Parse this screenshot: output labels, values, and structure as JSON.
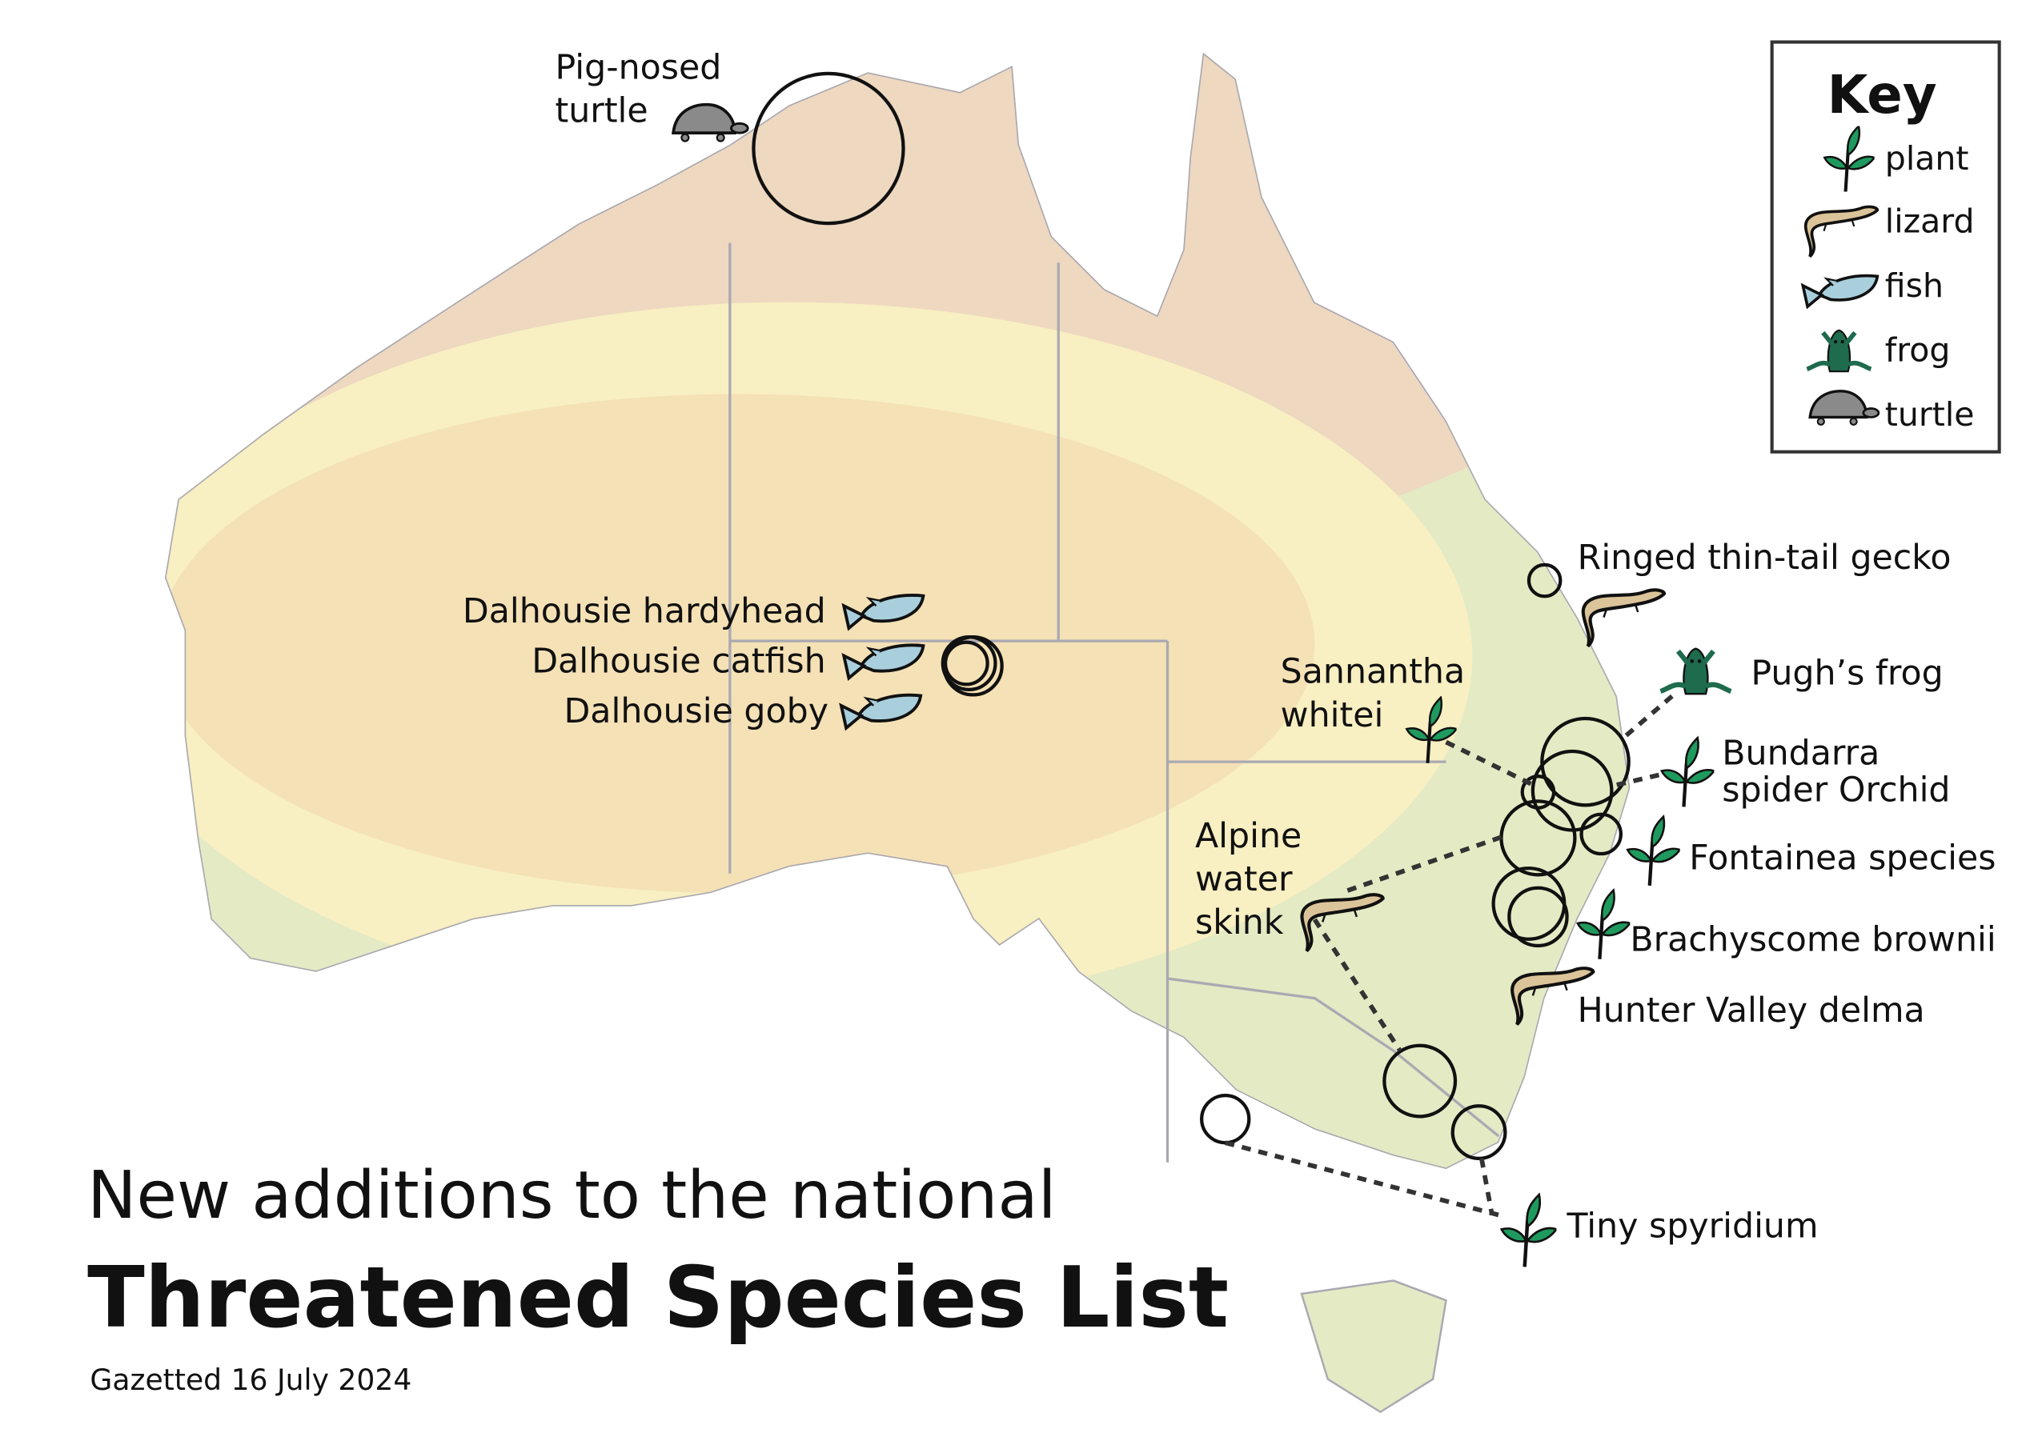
{
  "title": {
    "line1": "New additions to the national",
    "line2": "Threatened Species List",
    "subtitle": "Gazetted 16 July 2024"
  },
  "key": {
    "title": "Key",
    "items": [
      {
        "icon": "plant-icon",
        "label": "plant"
      },
      {
        "icon": "lizard-icon",
        "label": "lizard"
      },
      {
        "icon": "fish-icon",
        "label": "fish"
      },
      {
        "icon": "frog-icon",
        "label": "frog"
      },
      {
        "icon": "turtle-icon",
        "label": "turtle"
      }
    ]
  },
  "species": {
    "pig_nosed_turtle": {
      "line1": "Pig-nosed",
      "line2": "turtle",
      "type": "turtle"
    },
    "dalhousie_hardyhead": {
      "label": "Dalhousie hardyhead",
      "type": "fish"
    },
    "dalhousie_catfish": {
      "label": "Dalhousie catfish",
      "type": "fish"
    },
    "dalhousie_goby": {
      "label": "Dalhousie goby",
      "type": "fish"
    },
    "ringed_gecko": {
      "label": "Ringed thin-tail gecko",
      "type": "lizard"
    },
    "pughs_frog": {
      "label": "Pugh’s frog",
      "type": "frog"
    },
    "sannantha": {
      "line1": "Sannantha",
      "line2": "whitei",
      "type": "plant"
    },
    "bundarra": {
      "line1": "Bundarra",
      "line2": "spider Orchid",
      "type": "plant"
    },
    "fontainea": {
      "label": "Fontainea species",
      "type": "plant"
    },
    "alpine_skink": {
      "line1": "Alpine",
      "line2": "water",
      "line3": "skink",
      "type": "lizard"
    },
    "brachyscome": {
      "label": "Brachyscome brownii",
      "type": "plant"
    },
    "hunter_delma": {
      "label": "Hunter Valley delma",
      "type": "lizard"
    },
    "tiny_spyridium": {
      "label": "Tiny spyridium",
      "type": "plant"
    }
  },
  "colors": {
    "land_south": "#e4eac4",
    "land_north": "#eed8c0",
    "land_arid": "#f8efc2",
    "land_core": "#f5e1b6",
    "plant": "#1f9a5e",
    "lizard": "#dcc49a",
    "fish": "#a9cfdc",
    "frog": "#1e6b4d",
    "turtle": "#8a8a8a"
  }
}
